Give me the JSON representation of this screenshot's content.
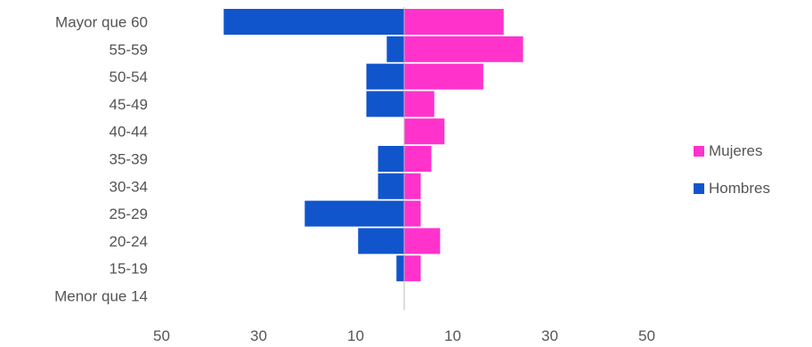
{
  "chart_data": {
    "type": "bar",
    "orientation": "horizontal-diverging",
    "categories": [
      "Mayor que 60",
      "55-59",
      "50-54",
      "45-49",
      "40-44",
      "35-39",
      "30-34",
      "25-29",
      "20-24",
      "15-19",
      "Menor que 14"
    ],
    "series": [
      {
        "name": "Mujeres",
        "color": "#ff33cc",
        "side": "right",
        "values": [
          20.5,
          24.5,
          16.3,
          6.2,
          8.3,
          5.6,
          3.4,
          3.4,
          7.4,
          3.4,
          0
        ]
      },
      {
        "name": "Hombres",
        "color": "#1155cc",
        "side": "left",
        "values": [
          37.2,
          3.6,
          7.8,
          7.8,
          0,
          5.4,
          5.4,
          20.5,
          9.5,
          1.6,
          0
        ]
      }
    ],
    "xticks": [
      "50",
      "30",
      "10",
      "10",
      "30",
      "50"
    ],
    "xlim": [
      -50,
      50
    ],
    "grid": false,
    "legend_position": "right"
  }
}
